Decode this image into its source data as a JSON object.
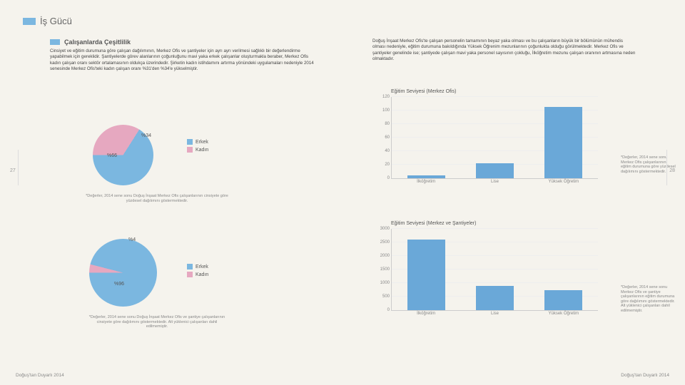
{
  "header": {
    "title": "İş Gücü"
  },
  "subheader": {
    "title": "Çalışanlarda Çeşitlilik"
  },
  "text": {
    "left": "Cinsiyet ve eğitim durumuna göre çalışan dağılımının, Merkez Ofis ve şantiyeler için ayrı ayrı verilmesi sağlıklı bir değerlendirme yapabilmek için gereklidir. Şantiyelerde görev alanlarının çoğunluğunu mavi yaka erkek çalışanlar oluşturmakla beraber, Merkez Ofis kadın çalışan oranı sektör ortalamasının oldukça üzerindedir. Şirketin kadın istihdamını artırma yönündeki uygulamaları nedeniyle 2014 senesinde Merkez Ofis'teki kadın çalışan oranı %31'den %34'e yükselmiştir.",
    "right": "Doğuş İnşaat Merkez Ofis'te çalışan personelin tamamının beyaz yaka olması ve bu çalışanların büyük bir bölümünün mühendis olması nedeniyle, eğitim durumuna bakıldığında Yüksek Öğrenim mezunlarının çoğunlukta olduğu görülmektedir. Merkez Ofis ve şantiyeler genelinde ise; şantiyede çalışan mavi yaka personel sayısının çokluğu, İlköğretim mezunu çalışan oranının artmasına neden olmaktadır."
  },
  "colors": {
    "blue": "#7bb7e0",
    "pink": "#e6a8c0",
    "bar_blue": "#6aa8d8",
    "grid": "#e8e6df"
  },
  "pie1": {
    "male_pct": 66,
    "female_pct": 34,
    "male_label": "%66",
    "female_label": "%34",
    "legend": {
      "male": "Erkek",
      "female": "Kadın"
    },
    "footnote": "*Değerler, 2014 sene sonu Doğuş İnşaat Merkez Ofis çalışanlarının cinsiyete göre yüzdesel dağılımını göstermektedir."
  },
  "pie2": {
    "male_pct": 96,
    "female_pct": 4,
    "male_label": "%96",
    "female_label": "%4",
    "legend": {
      "male": "Erkek",
      "female": "Kadın"
    },
    "footnote": "*Değerler, 2014 sene sonu Doğuş İnşaat Merkez Ofis ve şantiye çalışanlarının cinsiyete göre dağılımını göstermektedir. Alt yüklenici çalışanları dahil edilmemiştir."
  },
  "chart1": {
    "title": "Eğitim Seviyesi (Merkez Ofis)",
    "categories": [
      "İlköğretim",
      "Lise",
      "Yüksek Öğretim"
    ],
    "values": [
      4,
      22,
      105
    ],
    "ymax": 120,
    "ystep": 20,
    "footnote": "*Değerler, 2014 sene sonu Merkez Ofis çalışanlarının eğitim durumuna göre yüzdesel dağılımını göstermektedir."
  },
  "chart2": {
    "title": "Eğitim Seviyesi (Merkez ve Şantiyeler)",
    "categories": [
      "İlköğretim",
      "Lise",
      "Yüksek Öğretim"
    ],
    "values": [
      2600,
      900,
      750
    ],
    "ymax": 3000,
    "ystep": 500,
    "footnote": "*Değerler, 2014 sene sonu Merkez Ofis ve şantiye çalışanlarının eğitim durumuna göre dağılımını göstermektedir. Alt yüklenici çalışanları dahil edilmemiştir."
  },
  "page": {
    "left_num": "27",
    "right_num": "28",
    "footer": "Doğuş'tan Duyarlı 2014"
  }
}
